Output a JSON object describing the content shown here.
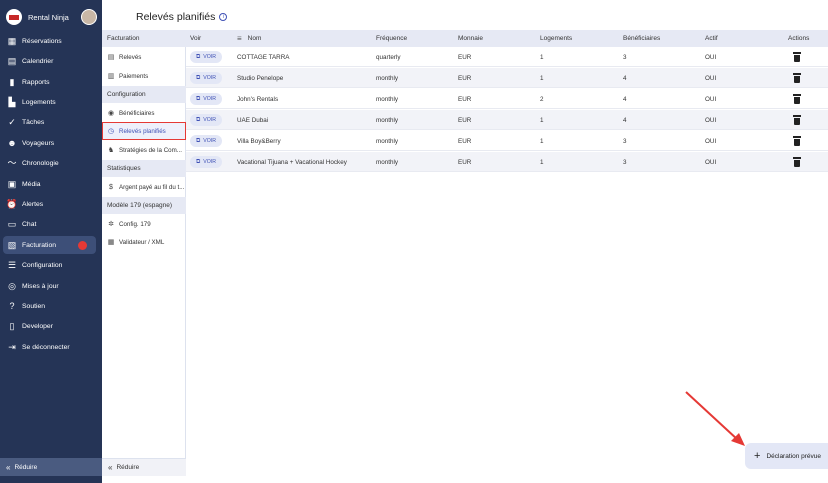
{
  "brand": {
    "name": "Rental Ninja"
  },
  "nav": {
    "items": [
      {
        "label": "Réservations",
        "icon": "calendar-icon"
      },
      {
        "label": "Calendrier",
        "icon": "calendar-month-icon"
      },
      {
        "label": "Rapports",
        "icon": "bar-chart-icon"
      },
      {
        "label": "Logements",
        "icon": "buildings-icon"
      },
      {
        "label": "Tâches",
        "icon": "check-circle-icon"
      },
      {
        "label": "Voyageurs",
        "icon": "people-icon"
      },
      {
        "label": "Chronologie",
        "icon": "timeline-icon"
      },
      {
        "label": "Média",
        "icon": "image-icon"
      },
      {
        "label": "Alertes",
        "icon": "alarm-icon"
      },
      {
        "label": "Chat",
        "icon": "chat-icon"
      },
      {
        "label": "Facturation",
        "icon": "invoice-icon"
      },
      {
        "label": "Configuration",
        "icon": "sliders-icon"
      },
      {
        "label": "Mises à jour",
        "icon": "broadcast-icon"
      },
      {
        "label": "Soutien",
        "icon": "help-circle-icon"
      },
      {
        "label": "Developer",
        "icon": "phone-icon"
      },
      {
        "label": "Se déconnecter",
        "icon": "logout-icon"
      }
    ],
    "collapse_label": "Réduire"
  },
  "subnav": {
    "sections": [
      {
        "header": "Facturation",
        "items": [
          {
            "label": "Relevés",
            "icon": "receipt-icon"
          },
          {
            "label": "Paiements",
            "icon": "bank-icon"
          }
        ]
      },
      {
        "header": "Configuration",
        "items": [
          {
            "label": "Bénéficiaires",
            "icon": "coins-icon"
          },
          {
            "label": "Relevés planifiés",
            "icon": "clock-icon"
          },
          {
            "label": "Stratégies de la Com...",
            "icon": "strategy-icon"
          }
        ]
      },
      {
        "header": "Statistiques",
        "items": [
          {
            "label": "Argent payé au fil du t...",
            "icon": "dollar-icon"
          }
        ]
      },
      {
        "header": "Modèle 179 (espagne)",
        "items": [
          {
            "label": "Config. 179",
            "icon": "gear-icon"
          },
          {
            "label": "Validateur / XML",
            "icon": "file-check-icon"
          }
        ]
      }
    ],
    "collapse_label": "Réduire"
  },
  "page": {
    "title": "Relevés planifiés"
  },
  "table": {
    "columns": [
      "Voir",
      "Nom",
      "Fréquence",
      "Monnaie",
      "Logements",
      "Bénéficiaires",
      "Actif",
      "Actions"
    ],
    "voir_label": "VOIR",
    "rows": [
      {
        "nom": "COTTAGE TARRA",
        "frequence": "quarterly",
        "monnaie": "EUR",
        "logements": "1",
        "beneficiaires": "3",
        "actif": "OUI"
      },
      {
        "nom": "Studio Penelope",
        "frequence": "monthly",
        "monnaie": "EUR",
        "logements": "1",
        "beneficiaires": "4",
        "actif": "OUI"
      },
      {
        "nom": "John's Rentals",
        "frequence": "monthly",
        "monnaie": "EUR",
        "logements": "2",
        "beneficiaires": "4",
        "actif": "OUI"
      },
      {
        "nom": "UAE Dubai",
        "frequence": "monthly",
        "monnaie": "EUR",
        "logements": "1",
        "beneficiaires": "4",
        "actif": "OUI"
      },
      {
        "nom": "Villa Boy&Berry",
        "frequence": "monthly",
        "monnaie": "EUR",
        "logements": "1",
        "beneficiaires": "3",
        "actif": "OUI"
      },
      {
        "nom": "Vacational Tijuana + Vacational Hockey",
        "frequence": "monthly",
        "monnaie": "EUR",
        "logements": "1",
        "beneficiaires": "3",
        "actif": "OUI"
      }
    ]
  },
  "fab": {
    "label": "Déclaration prévue"
  },
  "colors": {
    "sidebar": "#253456",
    "accent": "#3f51b5",
    "highlight": "#e53935",
    "header_bg": "#e6e9f4"
  }
}
